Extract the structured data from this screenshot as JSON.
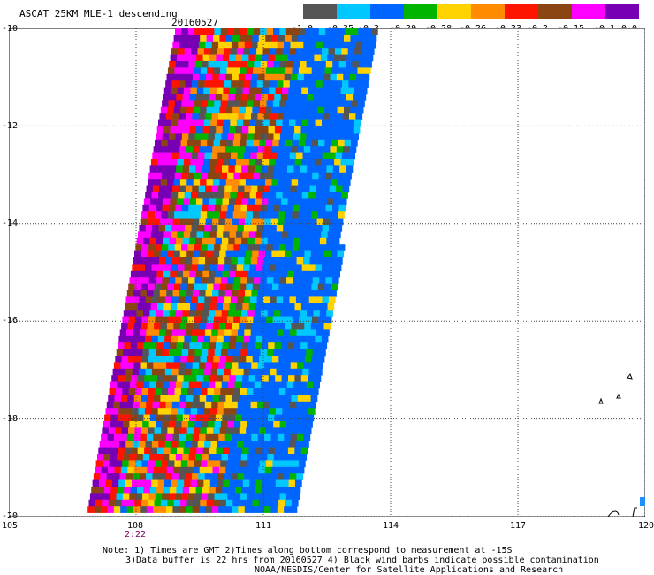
{
  "title": "ASCAT 25KM MLE-1 descending",
  "date": "20160527",
  "legend": {
    "colors": [
      "#555555",
      "#00c8ff",
      "#0064ff",
      "#00b400",
      "#ffd200",
      "#ff8c00",
      "#ff1400",
      "#8b4513",
      "#ff00ff",
      "#7800b4"
    ],
    "labels": [
      "-1.0",
      "-0.35",
      "-0.3",
      "-0.29",
      "-0.28",
      "-0.26",
      "-0.23",
      "-0.2",
      "-0.15",
      "-0.1",
      "0.0"
    ]
  },
  "axes": {
    "y_ticks": [
      "-10",
      "-12",
      "-14",
      "-16",
      "-18",
      "-20"
    ],
    "x_ticks": [
      "105",
      "108",
      "111",
      "114",
      "117",
      "120"
    ],
    "y_range": [
      -20,
      -10
    ],
    "x_range": [
      105,
      120
    ],
    "grid": true
  },
  "swath_time": "2:22",
  "notes": [
    "Note: 1) Times are GMT 2)Times along bottom correspond to measurement at -15S",
    "3)Data buffer is 22 hrs from 20160527 4) Black wind barbs indicate possible contamination",
    "NOAA/NESDIS/Center for Satellite Applications and Research"
  ]
}
